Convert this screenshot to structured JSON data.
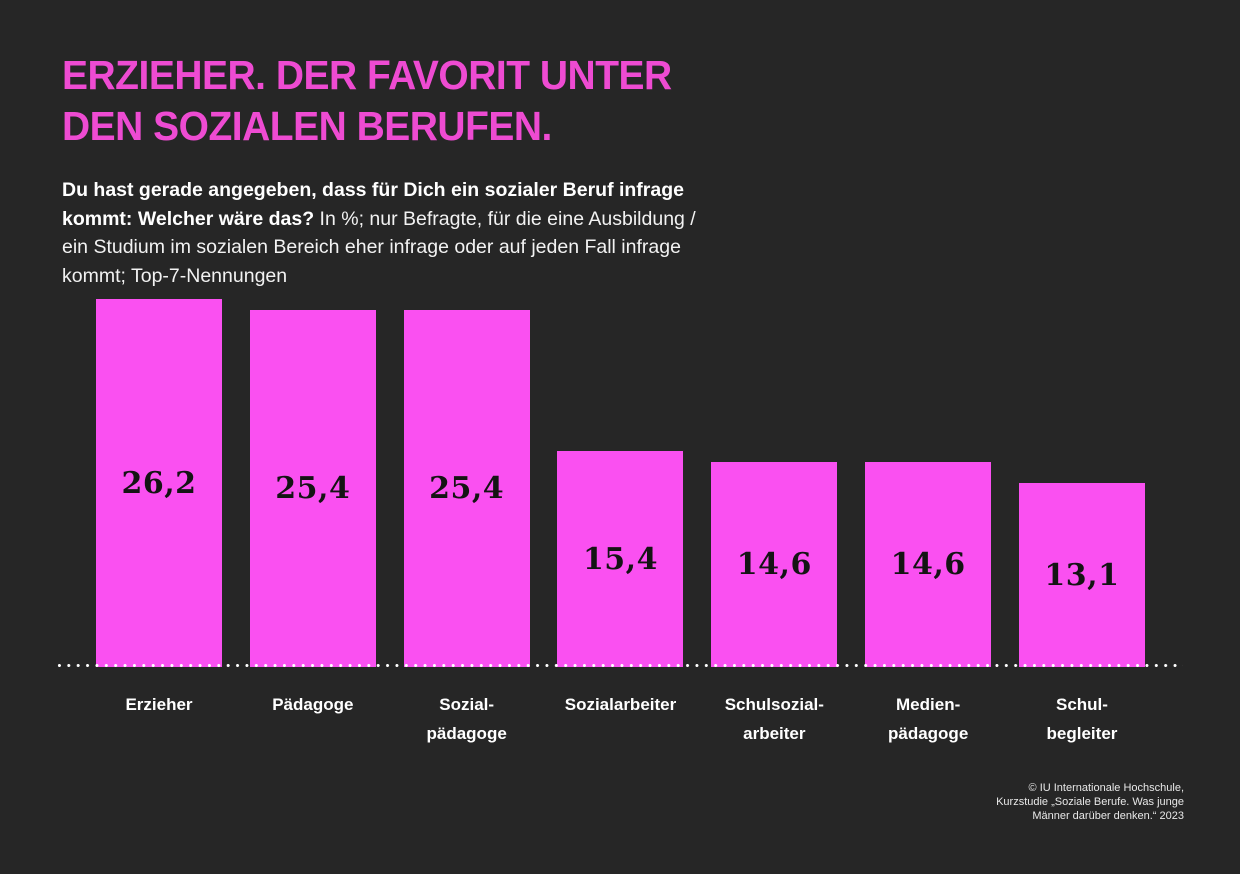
{
  "page": {
    "background_color": "#262626",
    "accent_title_color": "#ee4bd2"
  },
  "header": {
    "title": "ERZIEHER. DER FAVORIT UNTER\nDEN SOZIALEN BERUFEN."
  },
  "subtitle": {
    "bold": "Du hast gerade angegeben, dass für Dich ein sozialer Beruf infrage kommt: Welcher wäre das?",
    "regular": " In %; nur Befragte, für die eine Ausbildung / ein Studium im sozialen Bereich eher infrage oder auf jeden Fall infrage kommt; Top-7-Nennungen"
  },
  "chart_data": {
    "type": "bar",
    "title": "Erzieher. Der Favorit unter den sozialen Berufen.",
    "categories": [
      "Erzieher",
      "Pädagoge",
      "Sozialpädagoge",
      "Sozialarbeiter",
      "Schulsozialarbeiter",
      "Medienpädagoge",
      "Schulbegleiter"
    ],
    "category_label_lines": [
      "Erzieher",
      "Pädagoge",
      "Sozial-\npädagoge",
      "Sozialarbeiter",
      "Schulsozial-\narbeiter",
      "Medien-\npädagoge",
      "Schul-\nbegleiter"
    ],
    "values": [
      26.2,
      25.4,
      25.4,
      15.4,
      14.6,
      14.6,
      13.1
    ],
    "value_labels": [
      "26,2",
      "25,4",
      "25,4",
      "15,4",
      "14,6",
      "14,6",
      "13,1"
    ],
    "unit": "%",
    "ylim": [
      0,
      27.5
    ],
    "grid": false,
    "legend": null,
    "bar_color": "#fa50f1",
    "value_text_color": "#141414",
    "baseline_style": "white dotted line",
    "xlabel": "",
    "ylabel": ""
  },
  "footer": {
    "credit": "© IU Internationale Hochschule,\nKurzstudie „Soziale Berufe. Was junge\nMänner darüber denken.“ 2023"
  }
}
